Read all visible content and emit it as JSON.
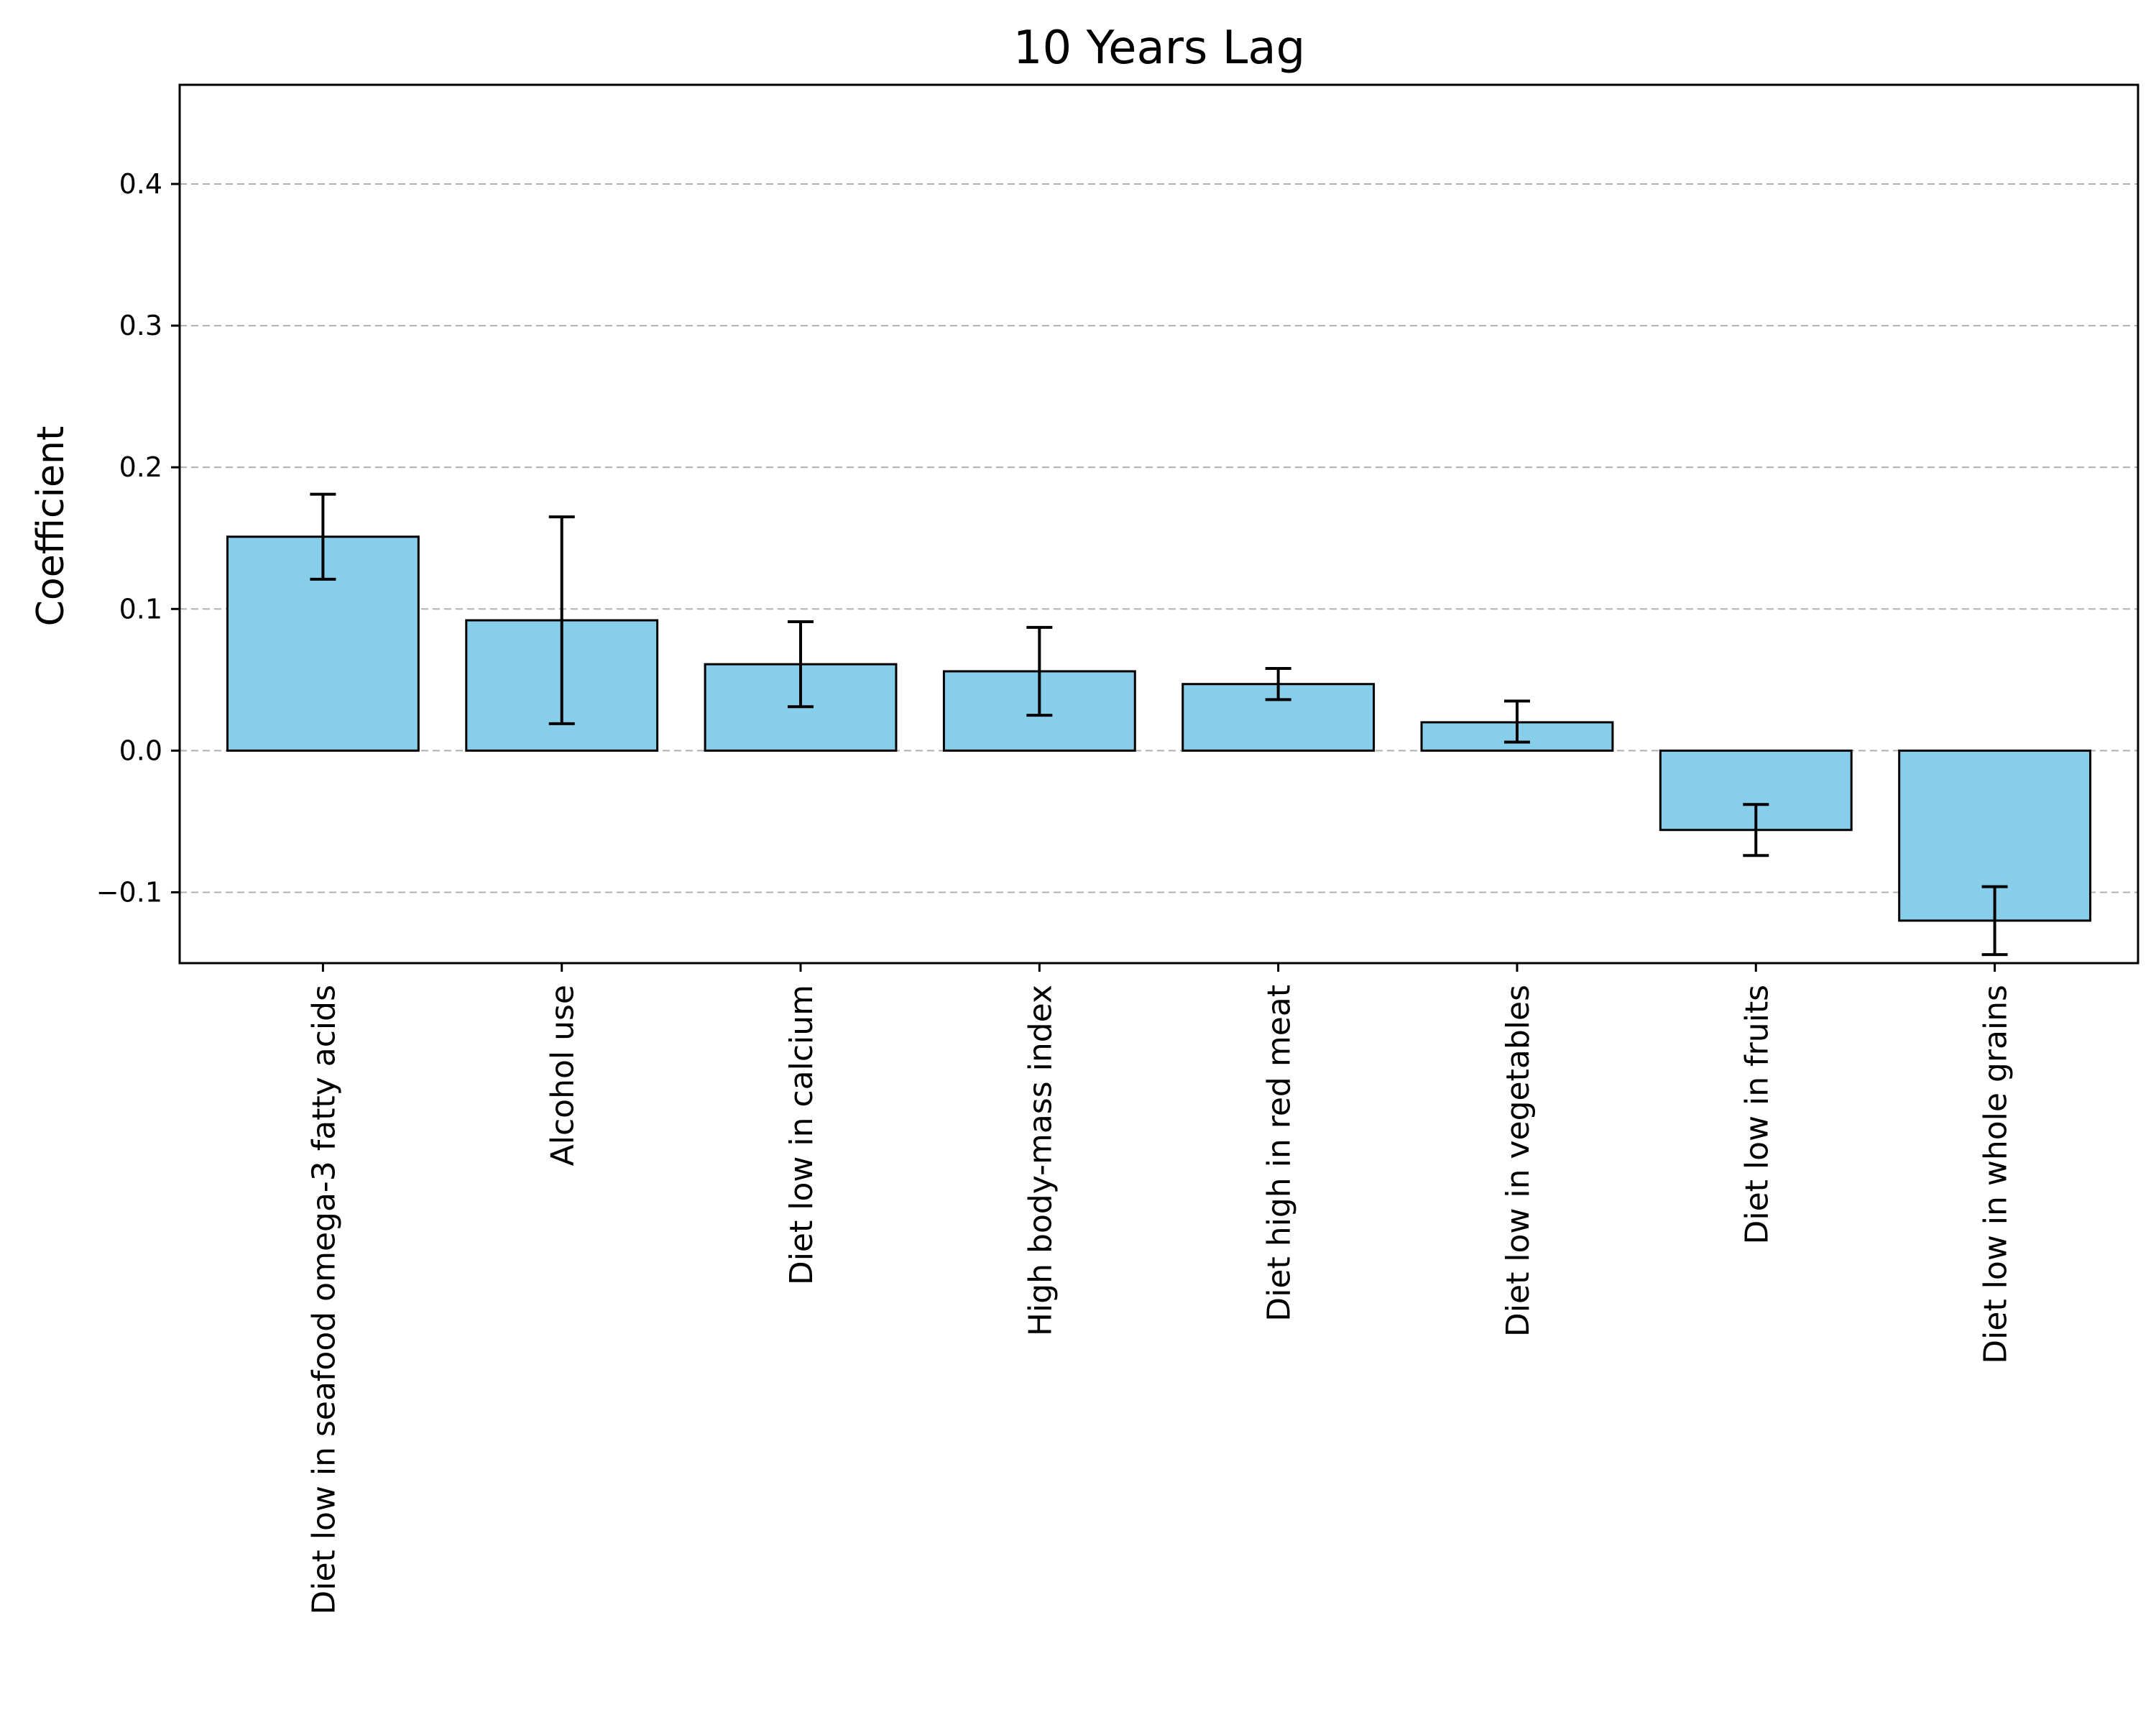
{
  "chart_data": {
    "type": "bar",
    "title": "10 Years Lag",
    "xlabel": "",
    "ylabel": "Coefficient",
    "ylim": [
      -0.15,
      0.47
    ],
    "yticks": [
      -0.1,
      0.0,
      0.1,
      0.2,
      0.3,
      0.4
    ],
    "ytick_labels": [
      "−0.1",
      "0.0",
      "0.1",
      "0.2",
      "0.3",
      "0.4"
    ],
    "grid": "horizontal dashed",
    "bar_color": "#87CEEB",
    "edge_color": "#000000",
    "categories": [
      "Diet low in seafood omega-3 fatty acids",
      "Alcohol use",
      "Diet low in calcium",
      "High body-mass index",
      "Diet high in red meat",
      "Diet low in vegetables",
      "Diet low in fruits",
      "Diet low in whole grains"
    ],
    "values": [
      0.151,
      0.092,
      0.061,
      0.056,
      0.047,
      0.02,
      -0.056,
      -0.12
    ],
    "error_low": [
      0.121,
      0.019,
      0.031,
      0.025,
      0.036,
      0.006,
      -0.074,
      -0.144
    ],
    "error_high": [
      0.181,
      0.165,
      0.091,
      0.087,
      0.058,
      0.035,
      -0.038,
      -0.096
    ]
  }
}
